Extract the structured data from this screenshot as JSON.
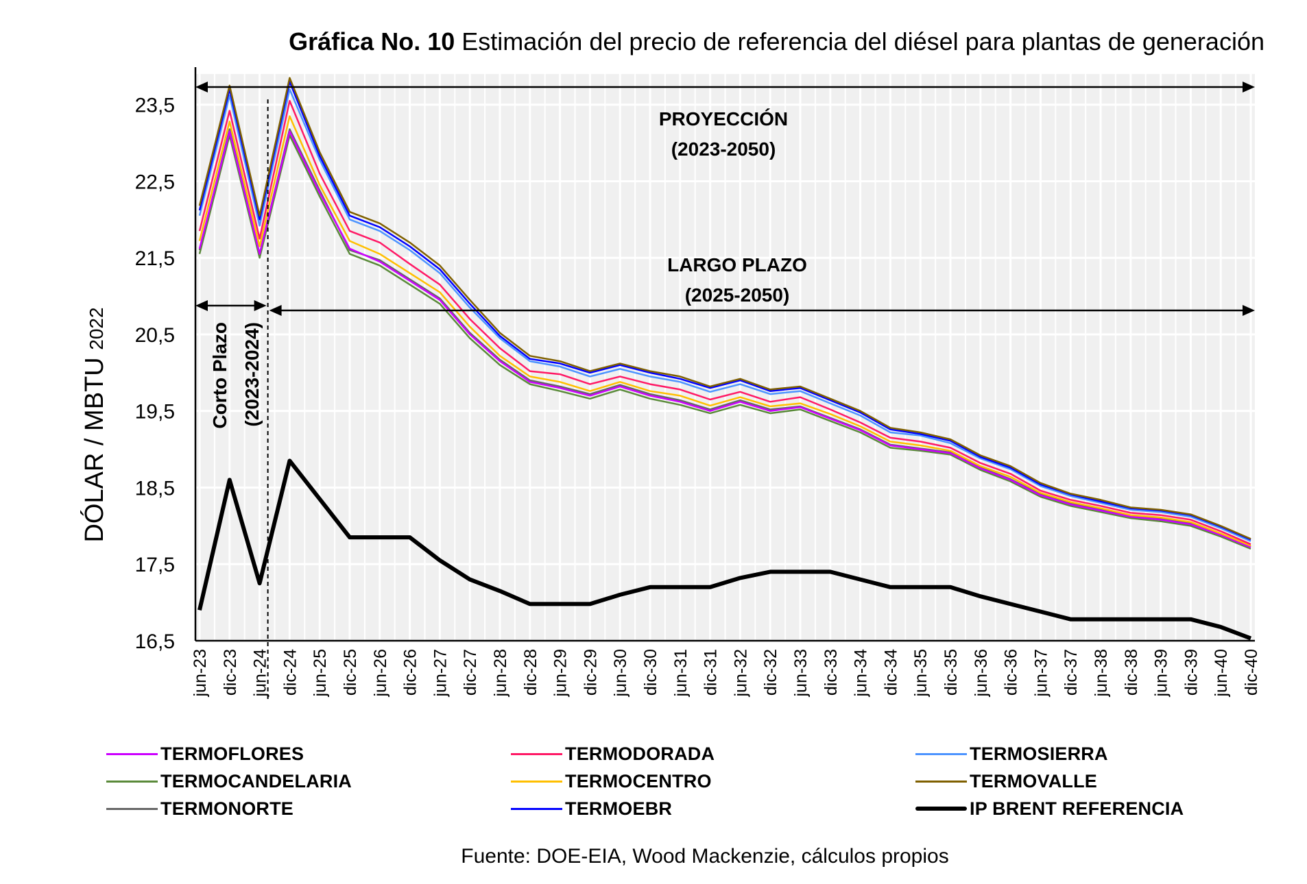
{
  "chart_data": {
    "type": "line",
    "title_bold": "Gráfica No. 10",
    "title": "Estimación del precio de referencia del diésel para plantas de generación",
    "ylabel": "DÓLAR / MBTU",
    "ylabel_suffix": "2022",
    "xlabel": "",
    "ylim": [
      16.5,
      23.9
    ],
    "yticks": [
      "16,5",
      "17,5",
      "18,5",
      "19,5",
      "20,5",
      "21,5",
      "22,5",
      "23,5"
    ],
    "ytick_values": [
      16.5,
      17.5,
      18.5,
      19.5,
      20.5,
      21.5,
      22.5,
      23.5
    ],
    "grid": true,
    "x": [
      "jun-23",
      "dic-23",
      "jun-24",
      "dic-24",
      "jun-25",
      "dic-25",
      "jun-26",
      "dic-26",
      "jun-27",
      "dic-27",
      "jun-28",
      "dic-28",
      "jun-29",
      "dic-29",
      "jun-30",
      "dic-30",
      "jun-31",
      "dic-31",
      "jun-32",
      "dic-32",
      "jun-33",
      "dic-33",
      "jun-34",
      "dic-34",
      "jun-35",
      "dic-35",
      "jun-36",
      "dic-36",
      "jun-37",
      "dic-37",
      "jun-38",
      "dic-38",
      "jun-39",
      "dic-39",
      "jun-40",
      "dic-40"
    ],
    "annotations": {
      "projection": [
        "PROYECCIÓN",
        "(2023-2050)"
      ],
      "long_term": [
        "LARGO PLAZO",
        "(2025-2050)"
      ],
      "short_term": [
        "Corto Plazo",
        "(2023-2024)"
      ]
    },
    "series": [
      {
        "name": "TERMOFLORES",
        "color": "#cc00ff",
        "width": 2.5,
        "values": [
          21.62,
          23.15,
          21.55,
          23.15,
          22.35,
          21.62,
          21.45,
          21.2,
          20.95,
          20.5,
          20.15,
          19.88,
          19.8,
          19.7,
          19.82,
          19.7,
          19.62,
          19.5,
          19.62,
          19.5,
          19.55,
          19.4,
          19.25,
          19.05,
          19.0,
          18.95,
          18.75,
          18.6,
          18.4,
          18.28,
          18.2,
          18.12,
          18.08,
          18.02,
          17.88,
          17.72
        ]
      },
      {
        "name": "TERMODORADA",
        "color": "#ff1a66",
        "width": 2.5,
        "values": [
          21.85,
          23.42,
          21.75,
          23.55,
          22.6,
          21.85,
          21.7,
          21.42,
          21.15,
          20.7,
          20.32,
          20.02,
          19.98,
          19.85,
          19.95,
          19.85,
          19.78,
          19.65,
          19.75,
          19.62,
          19.68,
          19.52,
          19.35,
          19.15,
          19.1,
          19.02,
          18.82,
          18.68,
          18.46,
          18.34,
          18.26,
          18.17,
          18.14,
          18.08,
          17.93,
          17.76
        ]
      },
      {
        "name": "TERMOSIERRA",
        "color": "#4d94ff",
        "width": 2.5,
        "values": [
          22.05,
          23.62,
          21.92,
          23.7,
          22.78,
          22.0,
          21.85,
          21.6,
          21.3,
          20.85,
          20.45,
          20.15,
          20.08,
          19.95,
          20.05,
          19.95,
          19.88,
          19.75,
          19.85,
          19.72,
          19.76,
          19.6,
          19.44,
          19.22,
          19.18,
          19.08,
          18.88,
          18.74,
          18.52,
          18.39,
          18.3,
          18.21,
          18.18,
          18.12,
          17.97,
          17.8
        ]
      },
      {
        "name": "TERMOCANDELARIA",
        "color": "#5a8a3a",
        "width": 2.5,
        "values": [
          21.55,
          23.1,
          21.5,
          23.1,
          22.3,
          21.55,
          21.4,
          21.15,
          20.9,
          20.45,
          20.1,
          19.85,
          19.76,
          19.66,
          19.78,
          19.66,
          19.58,
          19.47,
          19.58,
          19.47,
          19.52,
          19.37,
          19.22,
          19.02,
          18.98,
          18.93,
          18.73,
          18.58,
          18.38,
          18.26,
          18.18,
          18.1,
          18.06,
          18.0,
          17.86,
          17.7
        ]
      },
      {
        "name": "TERMOCENTRO",
        "color": "#ffbf00",
        "width": 2.5,
        "values": [
          21.72,
          23.28,
          21.65,
          23.35,
          22.45,
          21.72,
          21.55,
          21.3,
          21.05,
          20.6,
          20.22,
          19.95,
          19.88,
          19.76,
          19.88,
          19.76,
          19.7,
          19.57,
          19.68,
          19.56,
          19.6,
          19.46,
          19.3,
          19.1,
          19.05,
          18.98,
          18.78,
          18.64,
          18.43,
          18.31,
          18.23,
          18.14,
          18.11,
          18.05,
          17.9,
          17.74
        ]
      },
      {
        "name": "TERMOVALLE",
        "color": "#7f6000",
        "width": 2.5,
        "values": [
          22.18,
          23.75,
          22.05,
          23.85,
          22.88,
          22.1,
          21.95,
          21.7,
          21.4,
          20.95,
          20.52,
          20.22,
          20.15,
          20.02,
          20.12,
          20.02,
          19.95,
          19.82,
          19.92,
          19.78,
          19.82,
          19.66,
          19.5,
          19.28,
          19.22,
          19.13,
          18.92,
          18.78,
          18.56,
          18.42,
          18.34,
          18.24,
          18.21,
          18.15,
          18.0,
          17.83
        ]
      },
      {
        "name": "TERMONORTE",
        "color": "#666666",
        "width": 2.5,
        "values": [
          21.6,
          23.18,
          21.55,
          23.18,
          22.38,
          21.6,
          21.47,
          21.22,
          20.97,
          20.52,
          20.17,
          19.9,
          19.82,
          19.72,
          19.84,
          19.72,
          19.64,
          19.52,
          19.64,
          19.52,
          19.56,
          19.41,
          19.26,
          19.06,
          19.01,
          18.96,
          18.76,
          18.61,
          18.41,
          18.29,
          18.21,
          18.13,
          18.09,
          18.03,
          17.89,
          17.73
        ]
      },
      {
        "name": "TERMOEBR",
        "color": "#0000ff",
        "width": 2.5,
        "values": [
          22.12,
          23.7,
          22.0,
          23.8,
          22.83,
          22.05,
          21.9,
          21.65,
          21.35,
          20.9,
          20.48,
          20.18,
          20.12,
          20.0,
          20.1,
          20.0,
          19.92,
          19.8,
          19.9,
          19.76,
          19.8,
          19.64,
          19.48,
          19.26,
          19.2,
          19.11,
          18.9,
          18.76,
          18.54,
          18.41,
          18.32,
          18.23,
          18.2,
          18.14,
          17.99,
          17.82
        ]
      },
      {
        "name": "IP BRENT  REFERENCIA",
        "color": "#000000",
        "width": 6,
        "values": [
          16.9,
          18.6,
          17.25,
          18.85,
          18.35,
          17.85,
          17.85,
          17.85,
          17.55,
          17.3,
          17.15,
          16.98,
          16.98,
          16.98,
          17.1,
          17.2,
          17.2,
          17.2,
          17.32,
          17.4,
          17.4,
          17.4,
          17.3,
          17.2,
          17.2,
          17.2,
          17.08,
          16.98,
          16.88,
          16.78,
          16.78,
          16.78,
          16.78,
          16.78,
          16.68,
          16.53
        ]
      }
    ]
  },
  "source": "Fuente: DOE-EIA, Wood Mackenzie, cálculos propios"
}
